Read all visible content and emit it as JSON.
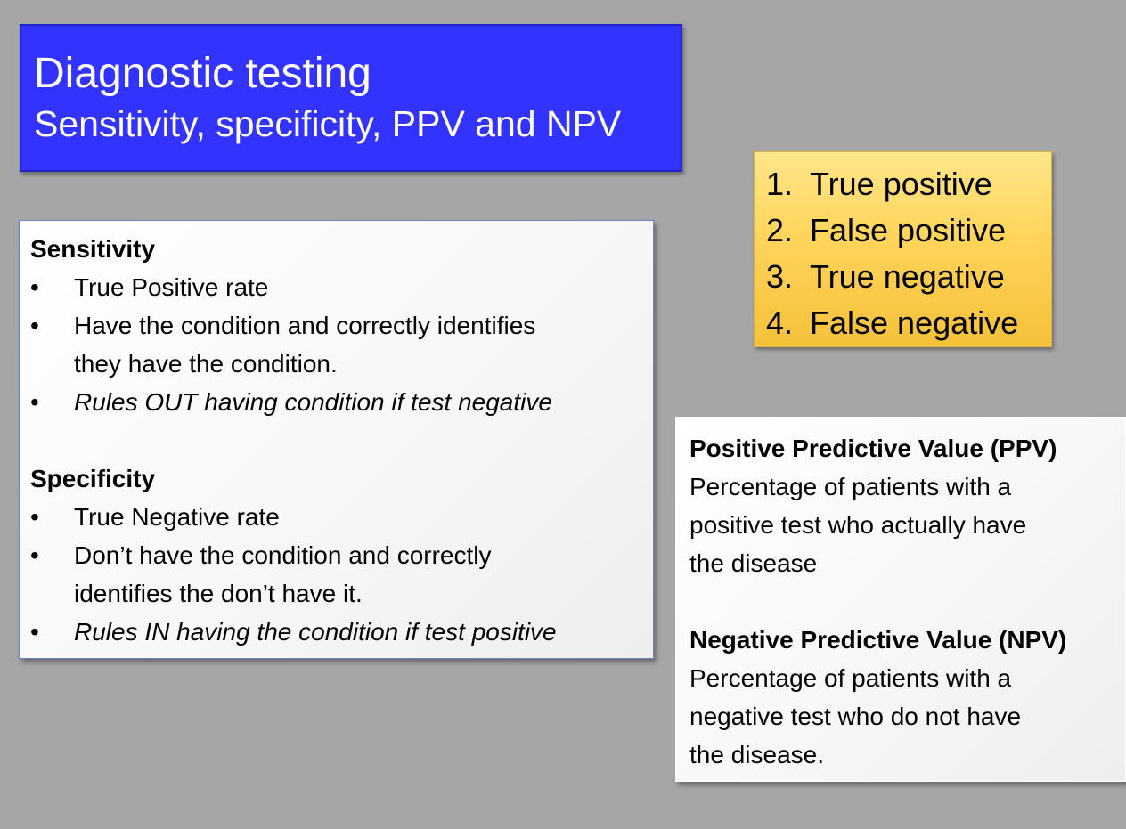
{
  "title": {
    "main": "Diagnostic testing",
    "subtitle": "Sensitivity, specificity, PPV and NPV"
  },
  "sensitivity": {
    "heading": "Sensitivity",
    "bullets": [
      {
        "lines": [
          "True Positive rate"
        ]
      },
      {
        "lines": [
          "Have the condition and correctly identifies",
          "they have the condition."
        ]
      },
      {
        "lines": [
          "Rules OUT having condition if test negative"
        ]
      }
    ]
  },
  "specificity": {
    "heading": "Specificity",
    "bullets": [
      {
        "lines": [
          "True Negative rate"
        ]
      },
      {
        "lines": [
          "Don’t have the condition and correctly",
          "identifies the don’t have it."
        ]
      },
      {
        "lines": [
          "Rules IN having the condition if test positive"
        ]
      }
    ]
  },
  "bullet_char": "•",
  "outcomes": [
    {
      "num": "1.",
      "label": "True positive"
    },
    {
      "num": "2.",
      "label": "False positive"
    },
    {
      "num": "3.",
      "label": "True negative"
    },
    {
      "num": "4.",
      "label": "False negative"
    }
  ],
  "ppv": {
    "heading": "Positive Predictive Value (PPV)",
    "lines": [
      "Percentage of patients with a",
      "positive test who actually have",
      "the disease"
    ]
  },
  "npv": {
    "heading": "Negative Predictive Value (NPV)",
    "lines": [
      "Percentage of patients with a",
      "negative test who do not have",
      "the disease."
    ]
  },
  "colors": {
    "background": "#a6a6a6",
    "title_box": "#3333ff",
    "list_box": "#ffd45a"
  }
}
